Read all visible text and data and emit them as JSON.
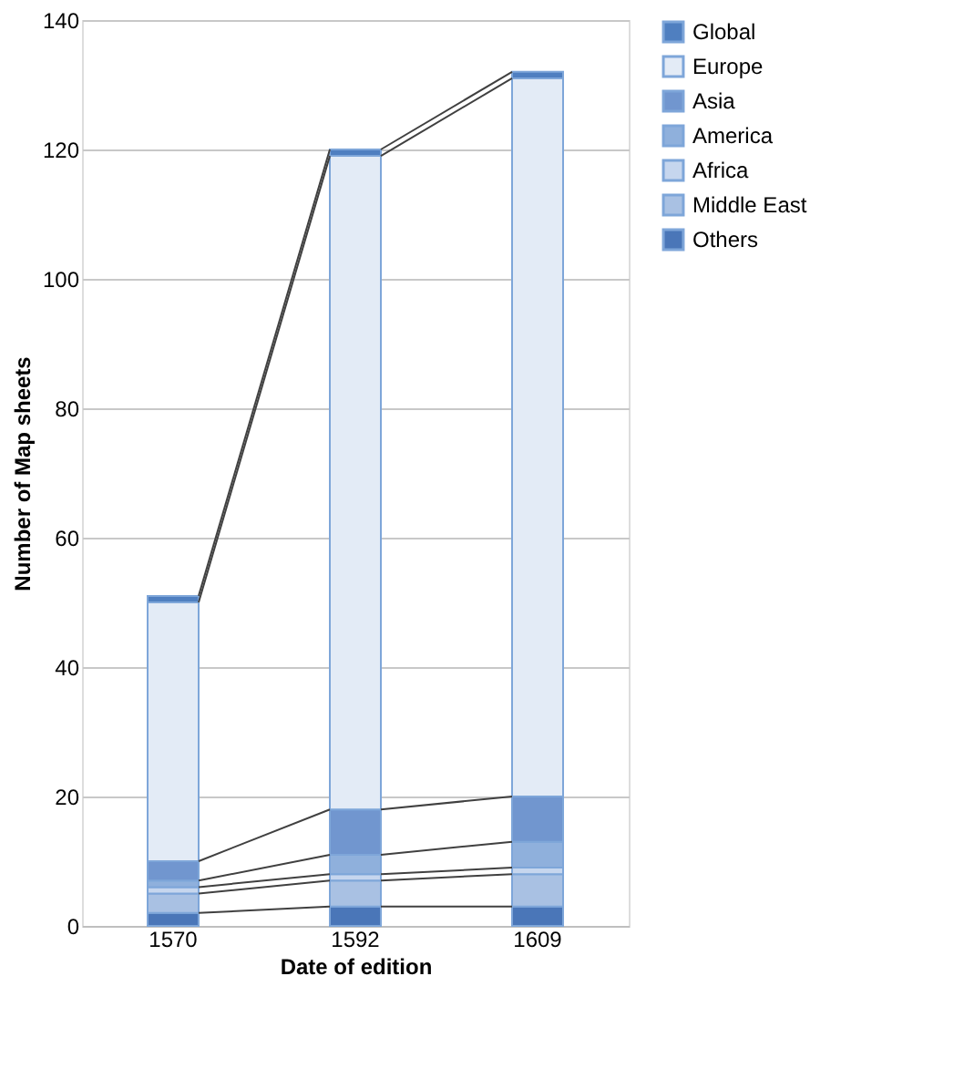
{
  "chart_data": {
    "type": "bar",
    "stacked": true,
    "xlabel": "Date of edition",
    "ylabel": "Number of Map sheets",
    "categories": [
      "1570",
      "1592",
      "1609"
    ],
    "series": [
      {
        "name": "Others",
        "color": "#4a76b8",
        "values": [
          2,
          3,
          3
        ]
      },
      {
        "name": "Middle East",
        "color": "#a9c1e3",
        "values": [
          3,
          4,
          5
        ]
      },
      {
        "name": "Africa",
        "color": "#c6d6ee",
        "values": [
          1,
          1,
          1
        ]
      },
      {
        "name": "America",
        "color": "#8fb0dc",
        "values": [
          1,
          3,
          4
        ]
      },
      {
        "name": "Asia",
        "color": "#7196cf",
        "values": [
          3,
          7,
          7
        ]
      },
      {
        "name": "Europe",
        "color": "#e3ebf6",
        "values": [
          40,
          101,
          111
        ]
      },
      {
        "name": "Global",
        "color": "#4f7fc0",
        "values": [
          1,
          1,
          1
        ]
      }
    ],
    "ylim": [
      0,
      140
    ],
    "yticks": [
      0,
      20,
      40,
      60,
      80,
      100,
      120,
      140
    ],
    "grid": "y",
    "legend": "right"
  }
}
